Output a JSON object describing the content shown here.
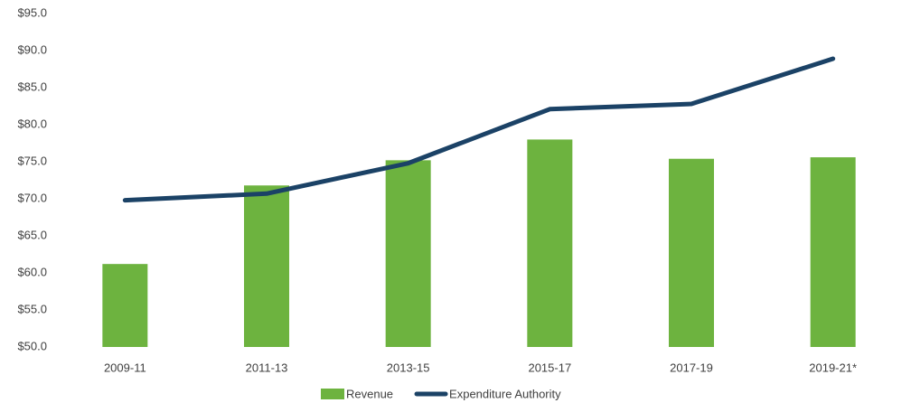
{
  "chart_data": {
    "type": "combo",
    "categories": [
      "2009-11",
      "2011-13",
      "2013-15",
      "2015-17",
      "2017-19",
      "2019-21*"
    ],
    "series": [
      {
        "name": "Revenue",
        "type": "bar",
        "color": "#6db33f",
        "values": [
          61.2,
          71.8,
          75.2,
          78.0,
          75.4,
          75.6
        ]
      },
      {
        "name": "Expenditure Authority",
        "type": "line",
        "color": "#1b4266",
        "values": [
          69.8,
          70.7,
          74.8,
          82.1,
          82.8,
          88.9
        ]
      }
    ],
    "ylim": [
      50,
      95
    ],
    "yticks": [
      {
        "value": 50,
        "label": "$50.0"
      },
      {
        "value": 55,
        "label": "$55.0"
      },
      {
        "value": 60,
        "label": "$60.0"
      },
      {
        "value": 65,
        "label": "$65.0"
      },
      {
        "value": 70,
        "label": "$70.0"
      },
      {
        "value": 75,
        "label": "$75.0"
      },
      {
        "value": 80,
        "label": "$80.0"
      },
      {
        "value": 85,
        "label": "$85.0"
      },
      {
        "value": 90,
        "label": "$90.0"
      },
      {
        "value": 95,
        "label": "$95.0"
      }
    ],
    "grid": false,
    "legend": "bottom"
  }
}
